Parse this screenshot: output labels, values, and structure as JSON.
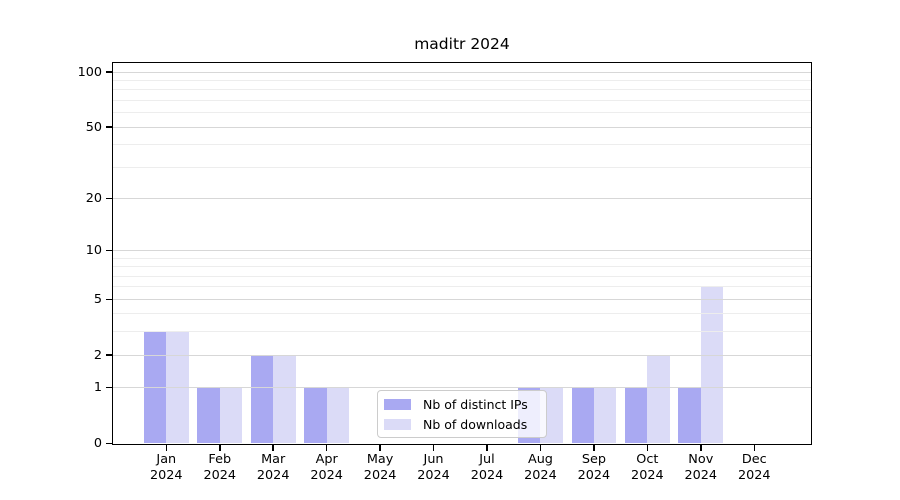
{
  "chart_data": {
    "type": "bar",
    "title": "maditr 2024",
    "categories": [
      "Jan",
      "Feb",
      "Mar",
      "Apr",
      "May",
      "Jun",
      "Jul",
      "Aug",
      "Sep",
      "Oct",
      "Nov",
      "Dec"
    ],
    "year_label": "2024",
    "series": [
      {
        "name": "Nb of distinct IPs",
        "color": "#a9a9f2",
        "values": [
          3,
          1,
          2,
          1,
          0,
          0,
          0,
          1,
          1,
          1,
          1,
          0
        ]
      },
      {
        "name": "Nb of downloads",
        "color": "#dbdbf7",
        "values": [
          3,
          1,
          2,
          1,
          0,
          0,
          0,
          1,
          1,
          2,
          6,
          0
        ]
      }
    ],
    "y_scale": "log1p",
    "y_ticks": [
      0,
      1,
      2,
      5,
      10,
      20,
      50,
      100
    ],
    "y_minor_ticks": [
      3,
      4,
      6,
      7,
      8,
      9,
      30,
      40,
      60,
      70,
      80,
      90
    ],
    "ylim": [
      0,
      112
    ],
    "grid": true,
    "legend_position": "lower center",
    "colors": {
      "axis": "#000000",
      "major_grid": "#d7d7d7",
      "minor_grid": "#ededed",
      "legend_border": "#cccccc",
      "text": "#000000"
    }
  }
}
